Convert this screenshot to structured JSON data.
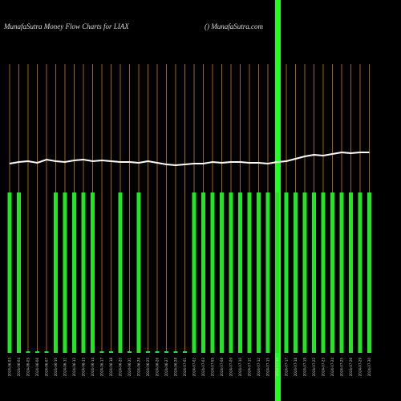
{
  "chart_data": {
    "type": "bar",
    "title": "MunafaSutra  Money Flow  Charts for LIAX",
    "subtitle": "() MunafaSutra.com",
    "categories": [
      "2024-06-03",
      "2024-06-04",
      "2024-06-05",
      "2024-06-06",
      "2024-06-07",
      "2024-06-10",
      "2024-06-11",
      "2024-06-12",
      "2024-06-13",
      "2024-06-14",
      "2024-06-17",
      "2024-06-18",
      "2024-06-20",
      "2024-06-21",
      "2024-06-24",
      "2024-06-25",
      "2024-06-26",
      "2024-06-27",
      "2024-06-28",
      "2024-07-01",
      "2024-07-02",
      "2024-07-03",
      "2024-07-05",
      "2024-07-08",
      "2024-07-09",
      "2024-07-10",
      "2024-07-11",
      "2024-07-12",
      "2024-07-15",
      "2024-07-16",
      "2024-07-17",
      "2024-07-18",
      "2024-07-19",
      "2024-07-22",
      "2024-07-23",
      "2024-07-24",
      "2024-07-25",
      "2024-07-26",
      "2024-07-29",
      "2024-07-30"
    ],
    "values": [
      100,
      100,
      1,
      1,
      1,
      100,
      100,
      100,
      100,
      100,
      1,
      1,
      100,
      1,
      100,
      1,
      1,
      1,
      1,
      1,
      100,
      100,
      100,
      100,
      100,
      100,
      100,
      100,
      100,
      100,
      100,
      100,
      100,
      100,
      100,
      100,
      100,
      100,
      100,
      100
    ],
    "color": "#22e622",
    "line": {
      "color": "#ffffff",
      "values": [
        118,
        119,
        119.5,
        118.5,
        120.5,
        119.5,
        119,
        120,
        120.5,
        119.5,
        120,
        119.5,
        119,
        119,
        118.5,
        119.5,
        118.5,
        117.5,
        117,
        117.5,
        118,
        118,
        119,
        118.5,
        119,
        119,
        118.5,
        118.5,
        118,
        119,
        119.5,
        121,
        122.5,
        123.5,
        123,
        124,
        125,
        124.5,
        125,
        125
      ]
    },
    "gridcolor": "#c8800a",
    "ylim": [
      0,
      200
    ]
  }
}
